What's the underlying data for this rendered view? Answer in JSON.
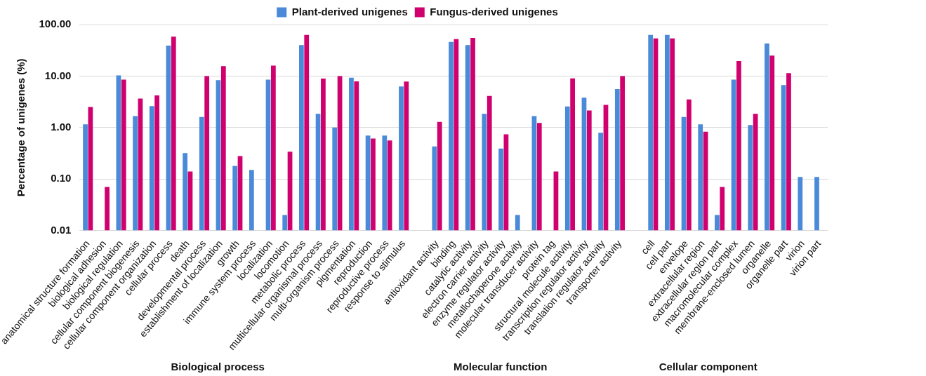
{
  "chart_data": {
    "type": "bar",
    "ylabel": "Percentage of unigenes (%)",
    "categories": [
      "anatomical structure formation",
      "biological adhesion",
      "biological regulation",
      "cellular component biogenesis",
      "cellular component organization",
      "cellular process",
      "death",
      "developmental process",
      "establishment of localization",
      "growth",
      "immune system process",
      "localization",
      "locomotion",
      "metabolic process",
      "multicellular organismal process",
      "multi-organism process",
      "pigmentation",
      "reproduction",
      "reproductive process",
      "response to stimulus",
      null,
      "antioxidant activity",
      "binding",
      "catalytic activity",
      "electron carrier activity",
      "enzyme regulator activity",
      "metallochaperone activity",
      "molecular transducer activity",
      "protein tag",
      "structural molecule activity",
      "transcription regulator activity",
      "translation regulator activity",
      "transporter activity",
      null,
      "cell",
      "cell part",
      "envelope",
      "extracellular region",
      "extracellular region part",
      "macromolecular complex",
      "membrane-enclosed lumen",
      "organelle",
      "organelle part",
      "virion",
      "virion part"
    ],
    "series": [
      {
        "name": "Plant-derived unigenes",
        "color": "#4a8ad8",
        "values": [
          1.15,
          null,
          10.3,
          1.67,
          2.6,
          39,
          0.32,
          1.6,
          8.3,
          0.18,
          0.15,
          8.5,
          0.02,
          40,
          1.85,
          1.0,
          9.3,
          0.7,
          0.7,
          6.3,
          null,
          0.43,
          46,
          40,
          1.85,
          0.39,
          0.02,
          1.67,
          null,
          2.57,
          3.8,
          0.79,
          5.6,
          null,
          63,
          63,
          1.6,
          1.15,
          0.02,
          8.5,
          1.12,
          43,
          6.7,
          0.11,
          0.11
        ]
      },
      {
        "name": "Fungus-derived unigenes",
        "color": "#d0006f",
        "values": [
          2.5,
          0.07,
          8.5,
          3.65,
          4.2,
          58,
          0.14,
          10,
          15.6,
          0.28,
          null,
          16,
          0.34,
          63,
          8.9,
          10,
          7.9,
          0.61,
          0.56,
          7.8,
          null,
          1.29,
          52,
          55,
          4.1,
          0.74,
          null,
          1.23,
          0.14,
          9.0,
          2.15,
          2.75,
          10,
          null,
          54,
          54,
          3.5,
          0.83,
          0.07,
          19.5,
          1.85,
          25,
          11.4,
          null,
          null
        ]
      }
    ],
    "log": "y",
    "ylim": [
      0.01,
      100
    ],
    "yticks": [
      {
        "value": 0.01,
        "label": "0.01"
      },
      {
        "value": 0.1,
        "label": "0.10"
      },
      {
        "value": 1,
        "label": "1.00"
      },
      {
        "value": 10,
        "label": "10.00"
      },
      {
        "value": 100,
        "label": "100.00"
      }
    ],
    "grid": "y",
    "legend": "top",
    "annotations": [
      "Biological process",
      "Molecular function",
      "Cellular component"
    ]
  }
}
